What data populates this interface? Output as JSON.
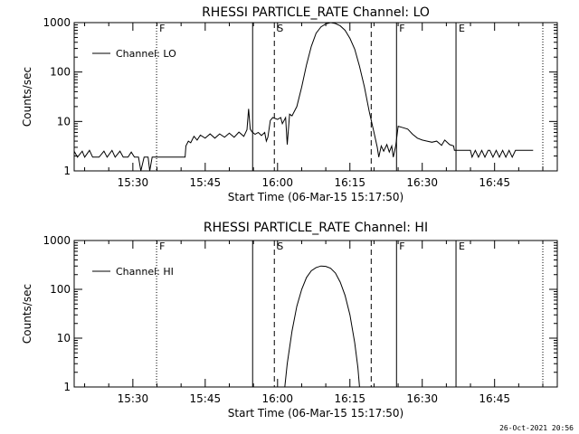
{
  "footer": {
    "date_stamp": "26-Oct-2021 20:56"
  },
  "chart_data": [
    {
      "type": "line",
      "title": "RHESSI PARTICLE_RATE Channel: LO",
      "xlabel": "Start Time (06-Mar-15 15:17:50)",
      "ylabel": "Counts/sec",
      "y_scale": "log",
      "ylim": [
        1,
        1000
      ],
      "xlim": [
        "15:17:50",
        "16:58:00"
      ],
      "x_ticks": [
        "15:30",
        "15:45",
        "16:00",
        "16:15",
        "16:30",
        "16:45"
      ],
      "y_ticks": [
        "1",
        "10",
        "100",
        "1000"
      ],
      "legend": "top-left",
      "series": [
        {
          "name": "Channel: LO",
          "points": [
            [
              "15:17:50",
              2.5
            ],
            [
              "15:18:30",
              1.9
            ],
            [
              "15:19:30",
              2.5
            ],
            [
              "15:20:00",
              1.9
            ],
            [
              "15:21:00",
              2.6
            ],
            [
              "15:21:40",
              1.9
            ],
            [
              "15:23:00",
              1.9
            ],
            [
              "15:24:00",
              2.5
            ],
            [
              "15:24:40",
              1.9
            ],
            [
              "15:25:40",
              2.6
            ],
            [
              "15:26:20",
              1.9
            ],
            [
              "15:27:20",
              2.5
            ],
            [
              "15:28:00",
              1.9
            ],
            [
              "15:29:00",
              1.9
            ],
            [
              "15:29:40",
              2.4
            ],
            [
              "15:30:20",
              1.9
            ],
            [
              "15:31:10",
              1.9
            ],
            [
              "15:31:40",
              1.0
            ],
            [
              "15:32:20",
              1.9
            ],
            [
              "15:33:10",
              1.9
            ],
            [
              "15:33:30",
              1.0
            ],
            [
              "15:34:00",
              1.9
            ],
            [
              "15:35:00",
              1.9
            ],
            [
              "15:36:00",
              1.9
            ],
            [
              "15:37:00",
              1.9
            ],
            [
              "15:38:00",
              1.9
            ],
            [
              "15:39:00",
              1.9
            ],
            [
              "15:40:00",
              1.9
            ],
            [
              "15:40:50",
              1.9
            ],
            [
              "15:41:00",
              3.2
            ],
            [
              "15:41:30",
              4.0
            ],
            [
              "15:42:00",
              3.7
            ],
            [
              "15:42:40",
              5.0
            ],
            [
              "15:43:20",
              4.2
            ],
            [
              "15:44:00",
              5.3
            ],
            [
              "15:45:00",
              4.6
            ],
            [
              "15:46:00",
              5.6
            ],
            [
              "15:47:00",
              4.6
            ],
            [
              "15:48:00",
              5.6
            ],
            [
              "15:49:00",
              4.8
            ],
            [
              "15:50:00",
              5.8
            ],
            [
              "15:51:00",
              4.8
            ],
            [
              "15:52:00",
              6.1
            ],
            [
              "15:53:00",
              5.0
            ],
            [
              "15:53:40",
              6.8
            ],
            [
              "15:54:00",
              18.0
            ],
            [
              "15:54:20",
              7.0
            ],
            [
              "15:54:40",
              6.2
            ],
            [
              "15:55:20",
              5.5
            ],
            [
              "15:56:00",
              6.0
            ],
            [
              "15:56:40",
              5.2
            ],
            [
              "15:57:20",
              6.0
            ],
            [
              "15:57:40",
              4.0
            ],
            [
              "15:58:00",
              4.8
            ],
            [
              "15:58:30",
              10.5
            ],
            [
              "15:59:00",
              12.0
            ],
            [
              "16:00:00",
              11.0
            ],
            [
              "16:00:40",
              12.0
            ],
            [
              "16:01:00",
              9.0
            ],
            [
              "16:01:40",
              12.0
            ],
            [
              "16:02:00",
              3.4
            ],
            [
              "16:02:30",
              14.0
            ],
            [
              "16:03:00",
              13.0
            ],
            [
              "16:04:00",
              20.0
            ],
            [
              "16:05:00",
              50.0
            ],
            [
              "16:06:00",
              140.0
            ],
            [
              "16:07:00",
              330.0
            ],
            [
              "16:08:00",
              610.0
            ],
            [
              "16:09:00",
              820.0
            ],
            [
              "16:10:00",
              940.0
            ],
            [
              "16:11:00",
              1000.0
            ],
            [
              "16:12:00",
              960.0
            ],
            [
              "16:13:00",
              860.0
            ],
            [
              "16:14:00",
              700.0
            ],
            [
              "16:15:00",
              480.0
            ],
            [
              "16:16:00",
              290.0
            ],
            [
              "16:17:00",
              130.0
            ],
            [
              "16:18:00",
              50.0
            ],
            [
              "16:19:00",
              16.0
            ],
            [
              "16:20:00",
              6.0
            ],
            [
              "16:20:40",
              3.0
            ],
            [
              "16:21:00",
              1.9
            ],
            [
              "16:21:30",
              3.2
            ],
            [
              "16:22:00",
              2.5
            ],
            [
              "16:22:40",
              3.4
            ],
            [
              "16:23:10",
              2.4
            ],
            [
              "16:23:40",
              3.2
            ],
            [
              "16:24:00",
              1.9
            ],
            [
              "16:24:30",
              3.2
            ],
            [
              "16:25:00",
              8.0
            ],
            [
              "16:26:00",
              7.5
            ],
            [
              "16:27:00",
              7.0
            ],
            [
              "16:28:00",
              5.5
            ],
            [
              "16:29:00",
              4.6
            ],
            [
              "16:30:00",
              4.2
            ],
            [
              "16:31:00",
              4.0
            ],
            [
              "16:32:00",
              3.8
            ],
            [
              "16:33:00",
              4.0
            ],
            [
              "16:34:00",
              3.3
            ],
            [
              "16:34:40",
              4.2
            ],
            [
              "16:35:40",
              3.4
            ],
            [
              "16:36:30",
              3.2
            ],
            [
              "16:36:40",
              2.6
            ],
            [
              "16:38:00",
              2.6
            ],
            [
              "16:39:00",
              2.6
            ],
            [
              "16:40:00",
              2.6
            ],
            [
              "16:40:20",
              1.9
            ],
            [
              "16:41:00",
              2.6
            ],
            [
              "16:41:40",
              1.9
            ],
            [
              "16:42:20",
              2.6
            ],
            [
              "16:43:00",
              1.9
            ],
            [
              "16:43:40",
              2.6
            ],
            [
              "16:44:00",
              2.6
            ],
            [
              "16:44:40",
              1.9
            ],
            [
              "16:45:20",
              2.6
            ],
            [
              "16:46:00",
              1.9
            ],
            [
              "16:46:40",
              2.6
            ],
            [
              "16:47:20",
              1.9
            ],
            [
              "16:48:00",
              2.6
            ],
            [
              "16:48:40",
              1.9
            ],
            [
              "16:49:20",
              2.6
            ],
            [
              "16:50:00",
              2.6
            ],
            [
              "16:52:00",
              2.6
            ],
            [
              "16:53:00",
              2.6
            ]
          ]
        }
      ],
      "markers": [
        {
          "label": "F",
          "time": "15:34:55",
          "style": "dotted"
        },
        {
          "label": "",
          "time": "15:54:50",
          "style": "solid"
        },
        {
          "label": "S",
          "time": "15:59:20",
          "style": "dashed"
        },
        {
          "label": "",
          "time": "16:19:25",
          "style": "dashed"
        },
        {
          "label": "F",
          "time": "16:24:40",
          "style": "solid"
        },
        {
          "label": "E",
          "time": "16:37:00",
          "style": "solid"
        },
        {
          "label": "",
          "time": "16:55:00",
          "style": "dotted"
        }
      ]
    },
    {
      "type": "line",
      "title": "RHESSI PARTICLE_RATE Channel: HI",
      "xlabel": "Start Time (06-Mar-15 15:17:50)",
      "ylabel": "Counts/sec",
      "y_scale": "log",
      "ylim": [
        1,
        1000
      ],
      "xlim": [
        "15:17:50",
        "16:58:00"
      ],
      "x_ticks": [
        "15:30",
        "15:45",
        "16:00",
        "16:15",
        "16:30",
        "16:45"
      ],
      "y_ticks": [
        "1",
        "10",
        "100",
        "1000"
      ],
      "legend": "top-left",
      "series": [
        {
          "name": "Channel: HI",
          "points": [
            [
              "16:01:30",
              1.0
            ],
            [
              "16:02:00",
              3.0
            ],
            [
              "16:03:00",
              14.0
            ],
            [
              "16:04:00",
              45.0
            ],
            [
              "16:05:00",
              100.0
            ],
            [
              "16:06:00",
              175.0
            ],
            [
              "16:07:00",
              240.0
            ],
            [
              "16:08:00",
              280.0
            ],
            [
              "16:09:00",
              300.0
            ],
            [
              "16:10:00",
              295.0
            ],
            [
              "16:11:00",
              270.0
            ],
            [
              "16:12:00",
              215.0
            ],
            [
              "16:13:00",
              140.0
            ],
            [
              "16:14:00",
              75.0
            ],
            [
              "16:15:00",
              30.0
            ],
            [
              "16:16:00",
              8.0
            ],
            [
              "16:16:40",
              2.5
            ],
            [
              "16:17:00",
              1.0
            ]
          ]
        }
      ],
      "markers": [
        {
          "label": "F",
          "time": "15:34:55",
          "style": "dotted"
        },
        {
          "label": "",
          "time": "15:54:50",
          "style": "solid"
        },
        {
          "label": "S",
          "time": "15:59:20",
          "style": "dashed"
        },
        {
          "label": "",
          "time": "16:19:25",
          "style": "dashed"
        },
        {
          "label": "F",
          "time": "16:24:40",
          "style": "solid"
        },
        {
          "label": "E",
          "time": "16:37:00",
          "style": "solid"
        },
        {
          "label": "",
          "time": "16:55:00",
          "style": "dotted"
        }
      ]
    }
  ]
}
